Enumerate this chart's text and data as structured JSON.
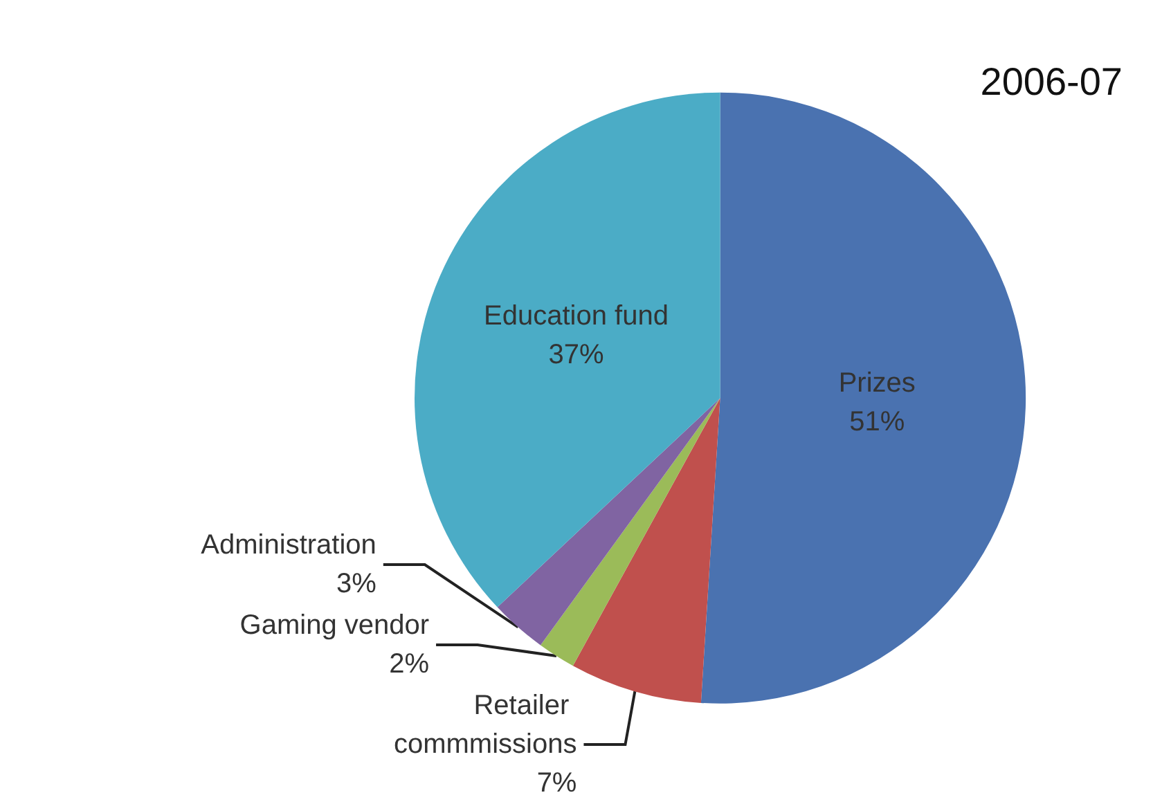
{
  "chart_data": {
    "type": "pie",
    "title": "2006-07",
    "categories": [
      "Prizes",
      "Retailer commmissions",
      "Gaming vendor",
      "Administration",
      "Education fund"
    ],
    "values": [
      51,
      7,
      2,
      3,
      37
    ],
    "value_labels": [
      "51%",
      "7%",
      "2%",
      "3%",
      "37%"
    ],
    "colors": [
      "#4a72b0",
      "#c0504d",
      "#9bbb59",
      "#8064a2",
      "#4bacc6"
    ],
    "legend": false
  }
}
